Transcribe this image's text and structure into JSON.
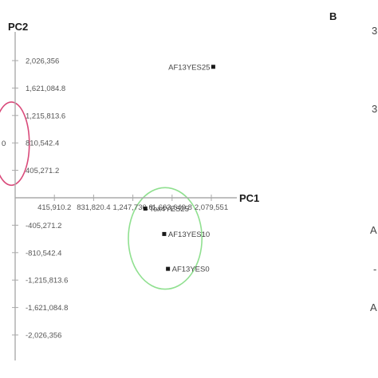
{
  "chart_data": {
    "type": "scatter",
    "xlabel": "PC1",
    "ylabel": "PC2",
    "x_ticks": [
      {
        "value": 415910.2,
        "label": "415,910.2"
      },
      {
        "value": 831820.4,
        "label": "831,820.4"
      },
      {
        "value": 1247730.6,
        "label": "1,247,730.6"
      },
      {
        "value": 1663640.8,
        "label": "1,663,640.8"
      },
      {
        "value": 2079551,
        "label": "2,079,551"
      }
    ],
    "y_ticks": [
      {
        "value": 2026356,
        "label": "2,026,356"
      },
      {
        "value": 1621084.8,
        "label": "1,621,084.8"
      },
      {
        "value": 1215813.6,
        "label": "1,215,813.6"
      },
      {
        "value": 810542.4,
        "label": "810,542.4"
      },
      {
        "value": 405271.2,
        "label": "405,271.2"
      },
      {
        "value": -405271.2,
        "label": "-405,271.2"
      },
      {
        "value": -810542.4,
        "label": "-810,542.4"
      },
      {
        "value": -1215813.6,
        "label": "-1,215,813.6"
      },
      {
        "value": -1621084.8,
        "label": "-1,621,084.8"
      },
      {
        "value": -2026356,
        "label": "-2,026,356"
      }
    ],
    "points": [
      {
        "label": "AF13YES25",
        "x": 2100000,
        "y": 1935000
      },
      {
        "label": "Tox4YES25",
        "x": 1380000,
        "y": -160000
      },
      {
        "label": "AF13YES10",
        "x": 1580000,
        "y": -535000
      },
      {
        "label": "AF13YES0",
        "x": 1620000,
        "y": -1050000
      }
    ],
    "groups": [
      {
        "color": "#90e090",
        "cx": 1590000,
        "cy": -600000,
        "rx": 390000,
        "ry": 750000
      },
      {
        "color": "#d94a7a",
        "cx": -40000,
        "cy": 800000,
        "rx": 190000,
        "ry": 615000
      }
    ],
    "grid": false,
    "legend": "none"
  },
  "panel_b": {
    "letter": "B",
    "fragments": [
      "3",
      "3",
      "A",
      "-",
      "A"
    ]
  },
  "fragments_left": [
    "0"
  ]
}
